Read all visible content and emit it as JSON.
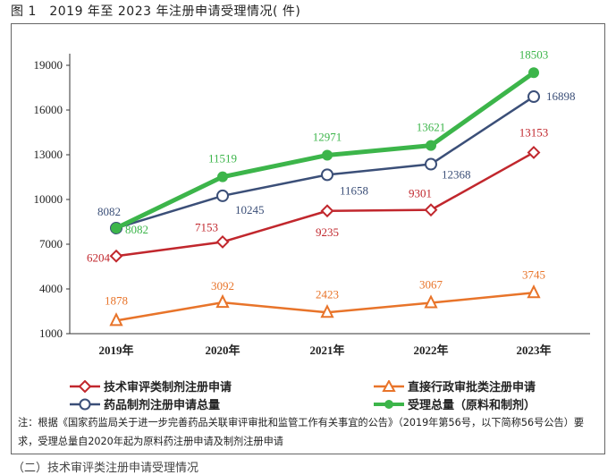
{
  "figure_title": "图 1　2019 年至 2023 年注册申请受理情况( 件)",
  "note": "注：根据《国家药监局关于进一步完善药品关联审评审批和监管工作有关事宜的公告》（2019年第56号，以下简称56号公告）要求，受理总量自2020年起为原料药注册申请及制剂注册申请",
  "bottom_text": "（二）技术审评类注册申请受理情况",
  "legend": [
    {
      "label": "技术审评类制剂注册申请",
      "color": "#c1272d",
      "marker": "diamond"
    },
    {
      "label": "直接行政审批类注册申请",
      "color": "#e8742a",
      "marker": "triangle"
    },
    {
      "label": "药品制剂注册申请总量",
      "color": "#3b4f78",
      "marker": "circle"
    },
    {
      "label": "受理总量（原料和制剂）",
      "color": "#3cb54a",
      "marker": "dot"
    }
  ],
  "chart_data": {
    "type": "line",
    "categories": [
      "2019年",
      "2020年",
      "2021年",
      "2022年",
      "2023年"
    ],
    "ylim": [
      1000,
      20000
    ],
    "yticks": [
      1000,
      4000,
      7000,
      10000,
      13000,
      16000,
      19000
    ],
    "grid": false,
    "legend_position": "bottom",
    "series": [
      {
        "name": "技术审评类制剂注册申请",
        "values": [
          6204,
          7153,
          9235,
          9301,
          13153
        ],
        "color": "#c1272d",
        "marker": "diamond"
      },
      {
        "name": "直接行政审批类注册申请",
        "values": [
          1878,
          3092,
          2423,
          3067,
          3745
        ],
        "color": "#e8742a",
        "marker": "triangle"
      },
      {
        "name": "药品制剂注册申请总量",
        "values": [
          8082,
          10245,
          11658,
          12368,
          16898
        ],
        "color": "#3b4f78",
        "marker": "circle"
      },
      {
        "name": "受理总量（原料和制剂）",
        "values": [
          8082,
          11519,
          12971,
          13621,
          18503
        ],
        "color": "#3cb54a",
        "marker": "dot"
      }
    ]
  }
}
